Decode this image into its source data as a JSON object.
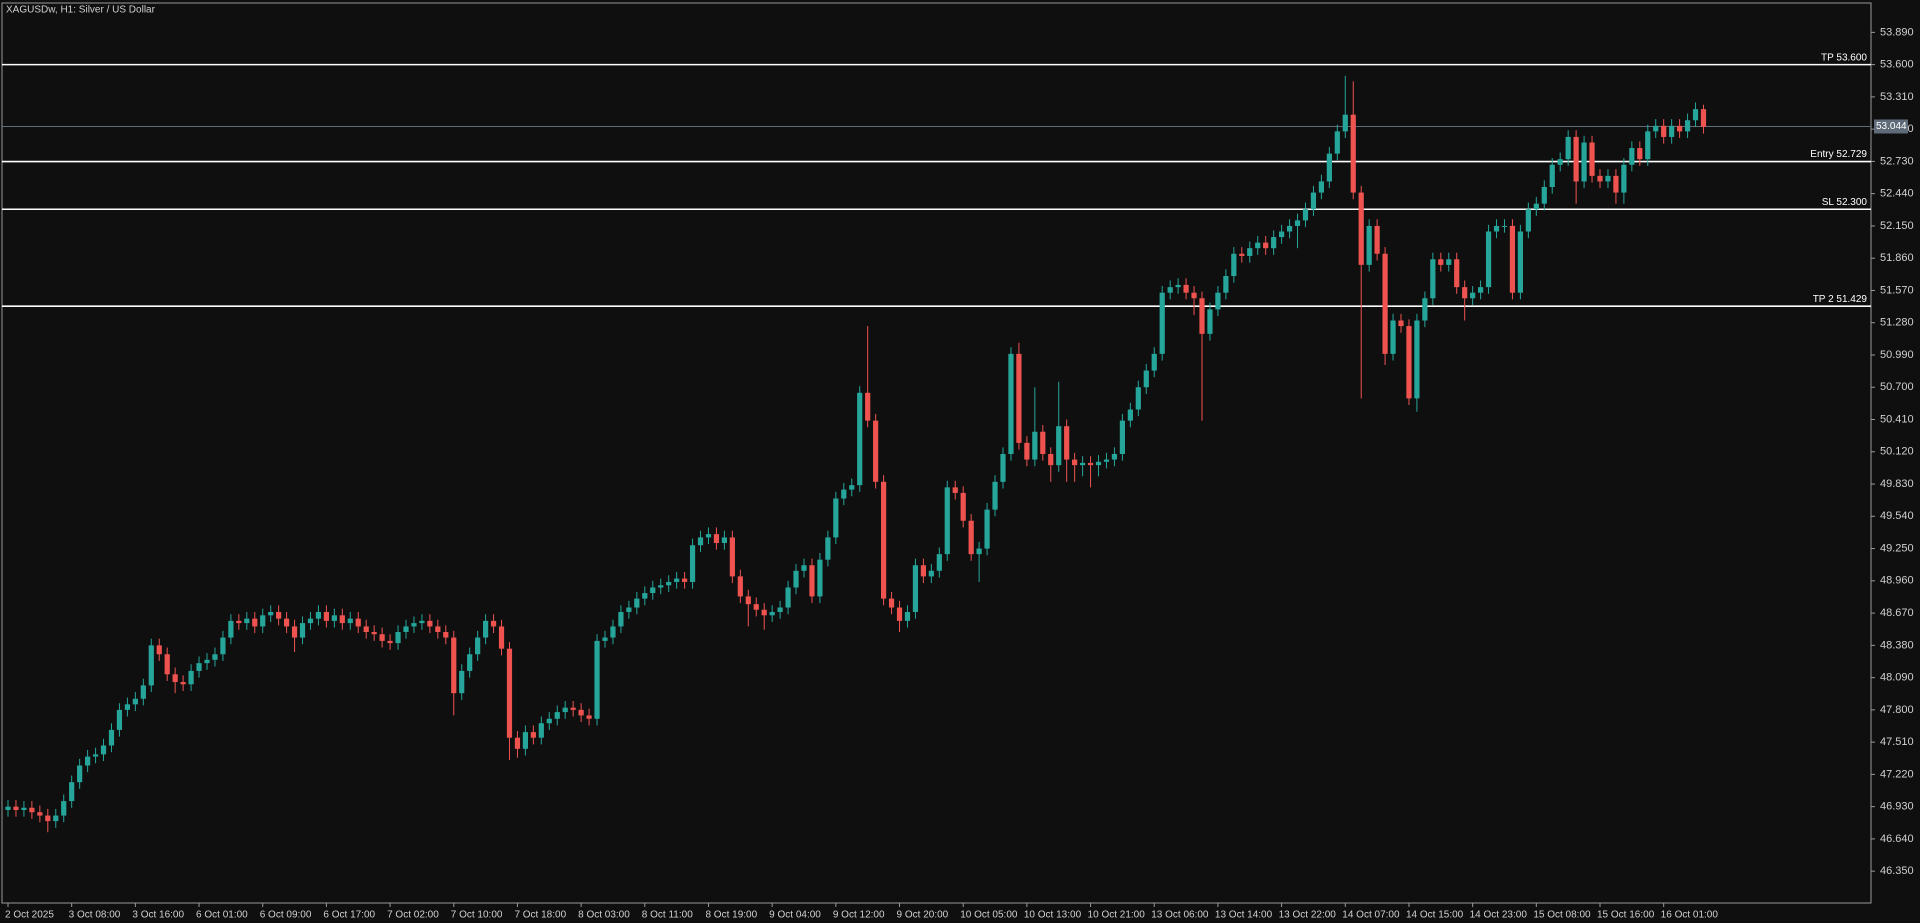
{
  "chart_data": {
    "type": "candlestick",
    "title": "XAGUSDw, H1:  Silver / US Dollar",
    "up_color": "#26a69a",
    "down_color": "#ef5350",
    "categories": [
      "2 Oct 2025",
      null,
      null,
      null,
      null,
      null,
      null,
      null,
      "3 Oct 08:00",
      null,
      null,
      null,
      null,
      null,
      null,
      null,
      "3 Oct 16:00",
      null,
      null,
      null,
      null,
      null,
      null,
      null,
      "6 Oct 01:00",
      null,
      null,
      null,
      null,
      null,
      null,
      null,
      "6 Oct 09:00",
      null,
      null,
      null,
      null,
      null,
      null,
      null,
      "6 Oct 17:00",
      null,
      null,
      null,
      null,
      null,
      null,
      null,
      "7 Oct 02:00",
      null,
      null,
      null,
      null,
      null,
      null,
      null,
      "7 Oct 10:00",
      null,
      null,
      null,
      null,
      null,
      null,
      null,
      "7 Oct 18:00",
      null,
      null,
      null,
      null,
      null,
      null,
      null,
      "8 Oct 03:00",
      null,
      null,
      null,
      null,
      null,
      null,
      null,
      "8 Oct 11:00",
      null,
      null,
      null,
      null,
      null,
      null,
      null,
      "8 Oct 19:00",
      null,
      null,
      null,
      null,
      null,
      null,
      null,
      "9 Oct 04:00",
      null,
      null,
      null,
      null,
      null,
      null,
      null,
      "9 Oct 12:00",
      null,
      null,
      null,
      null,
      null,
      null,
      null,
      "9 Oct 20:00",
      null,
      null,
      null,
      null,
      null,
      null,
      null,
      "10 Oct 05:00",
      null,
      null,
      null,
      null,
      null,
      null,
      null,
      "10 Oct 13:00",
      null,
      null,
      null,
      null,
      null,
      null,
      null,
      "10 Oct 21:00",
      null,
      null,
      null,
      null,
      null,
      null,
      null,
      "13 Oct 06:00",
      null,
      null,
      null,
      null,
      null,
      null,
      null,
      "13 Oct 14:00",
      null,
      null,
      null,
      null,
      null,
      null,
      null,
      "13 Oct 22:00",
      null,
      null,
      null,
      null,
      null,
      null,
      null,
      "14 Oct 07:00",
      null,
      null,
      null,
      null,
      null,
      null,
      null,
      "14 Oct 15:00",
      null,
      null,
      null,
      null,
      null,
      null,
      null,
      "14 Oct 23:00",
      null,
      null,
      null,
      null,
      null,
      null,
      null,
      "15 Oct 08:00",
      null,
      null,
      null,
      null,
      null,
      null,
      null,
      "15 Oct 16:00",
      null,
      null,
      null,
      null,
      null,
      null,
      null,
      "16 Oct 01:00",
      null,
      null,
      null,
      null,
      null
    ],
    "open": [
      46.9,
      46.93,
      46.9,
      46.92,
      46.88,
      46.85,
      46.8,
      46.85,
      46.98,
      47.15,
      47.3,
      47.38,
      47.4,
      47.48,
      47.62,
      47.8,
      47.85,
      47.9,
      48.02,
      48.38,
      48.3,
      48.12,
      48.05,
      48.03,
      48.15,
      48.22,
      48.25,
      48.3,
      48.45,
      48.6,
      48.58,
      48.62,
      48.55,
      48.65,
      48.68,
      48.62,
      48.55,
      48.45,
      48.58,
      48.62,
      48.68,
      48.6,
      48.65,
      48.58,
      48.62,
      48.55,
      48.5,
      48.48,
      48.42,
      48.4,
      48.5,
      48.55,
      48.58,
      48.6,
      48.55,
      48.5,
      48.45,
      47.95,
      48.15,
      48.3,
      48.45,
      48.6,
      48.55,
      48.35,
      47.55,
      47.45,
      47.6,
      47.55,
      47.68,
      47.72,
      47.78,
      47.82,
      47.8,
      47.75,
      47.72,
      48.42,
      48.45,
      48.55,
      48.68,
      48.72,
      48.8,
      48.85,
      48.9,
      48.92,
      48.95,
      48.98,
      48.95,
      49.28,
      49.35,
      49.38,
      49.3,
      49.35,
      49.0,
      48.82,
      48.75,
      48.7,
      48.65,
      48.68,
      48.72,
      48.9,
      49.05,
      49.1,
      48.82,
      49.15,
      49.35,
      49.7,
      49.78,
      49.82,
      50.65,
      50.4,
      49.85,
      48.8,
      48.72,
      48.6,
      48.68,
      49.1,
      49.0,
      49.05,
      49.2,
      49.8,
      49.75,
      49.5,
      49.2,
      49.25,
      49.6,
      49.85,
      50.1,
      51.0,
      50.2,
      50.05,
      50.3,
      50.1,
      50.0,
      50.35,
      50.05,
      50.0,
      50.02,
      50.0,
      50.03,
      50.05,
      50.1,
      50.4,
      50.5,
      50.7,
      50.85,
      51.0,
      51.55,
      51.6,
      51.62,
      51.55,
      51.5,
      51.18,
      51.4,
      51.55,
      51.7,
      51.9,
      51.88,
      51.95,
      52.0,
      51.95,
      52.05,
      52.1,
      52.15,
      52.2,
      52.3,
      52.45,
      52.55,
      52.8,
      53.0,
      53.15,
      52.45,
      51.8,
      52.15,
      51.9,
      51.0,
      51.3,
      51.25,
      50.6,
      51.3,
      51.5,
      51.85,
      51.8,
      51.85,
      51.6,
      51.5,
      51.55,
      51.6,
      52.1,
      52.15,
      52.15,
      51.55,
      52.1,
      52.3,
      52.35,
      52.5,
      52.7,
      52.75,
      52.95,
      52.55,
      52.9,
      52.6,
      52.55,
      52.6,
      52.45,
      52.7,
      52.85,
      52.75,
      53.0,
      53.05,
      52.95,
      53.05,
      53.0,
      53.1,
      53.2
    ],
    "high": [
      46.99,
      46.99,
      46.98,
      46.98,
      46.94,
      46.91,
      46.91,
      47.04,
      47.21,
      47.36,
      47.44,
      47.46,
      47.54,
      47.68,
      47.86,
      47.91,
      47.96,
      48.08,
      48.44,
      48.44,
      48.36,
      48.18,
      48.11,
      48.21,
      48.28,
      48.31,
      48.36,
      48.51,
      48.66,
      48.66,
      48.68,
      48.68,
      48.71,
      48.74,
      48.74,
      48.68,
      48.61,
      48.64,
      48.68,
      48.74,
      48.74,
      48.71,
      48.71,
      48.68,
      48.68,
      48.61,
      48.56,
      48.54,
      48.48,
      48.56,
      48.61,
      48.64,
      48.66,
      48.66,
      48.61,
      48.56,
      48.51,
      48.21,
      48.36,
      48.51,
      48.66,
      48.66,
      48.61,
      48.41,
      47.61,
      47.66,
      47.66,
      47.74,
      47.78,
      47.84,
      47.88,
      47.88,
      47.86,
      47.81,
      48.48,
      48.51,
      48.61,
      48.74,
      48.78,
      48.86,
      48.91,
      48.96,
      48.98,
      49.01,
      49.04,
      49.04,
      49.34,
      49.41,
      49.44,
      49.44,
      49.41,
      49.41,
      49.06,
      48.88,
      48.81,
      48.76,
      48.74,
      48.78,
      48.96,
      49.11,
      49.16,
      49.16,
      49.21,
      49.41,
      49.76,
      49.84,
      49.88,
      50.71,
      51.25,
      50.46,
      49.91,
      48.86,
      48.78,
      48.74,
      49.16,
      49.16,
      49.11,
      49.26,
      49.86,
      49.86,
      49.81,
      49.56,
      49.31,
      49.66,
      49.91,
      50.16,
      51.06,
      51.1,
      50.26,
      50.7,
      50.36,
      50.16,
      50.75,
      50.41,
      50.11,
      50.08,
      50.08,
      50.09,
      50.11,
      50.16,
      50.46,
      50.56,
      50.76,
      50.91,
      51.06,
      51.61,
      51.66,
      51.68,
      51.68,
      51.61,
      51.56,
      51.46,
      51.61,
      51.76,
      51.96,
      51.96,
      52.01,
      52.06,
      52.06,
      52.11,
      52.16,
      52.21,
      52.26,
      52.36,
      52.51,
      52.61,
      52.86,
      53.06,
      53.5,
      53.45,
      52.51,
      52.21,
      52.21,
      51.96,
      51.36,
      51.36,
      51.31,
      51.36,
      51.56,
      51.91,
      51.91,
      51.91,
      51.91,
      51.66,
      51.61,
      51.66,
      52.16,
      52.21,
      52.21,
      52.21,
      52.16,
      52.36,
      52.41,
      52.56,
      52.76,
      52.81,
      53.01,
      53.01,
      52.96,
      52.96,
      52.66,
      52.66,
      52.66,
      52.76,
      52.91,
      52.91,
      53.06,
      53.11,
      53.11,
      53.11,
      53.11,
      53.16,
      53.26,
      53.24
    ],
    "low": [
      46.84,
      46.84,
      46.84,
      46.82,
      46.79,
      46.7,
      46.74,
      46.79,
      46.92,
      47.09,
      47.24,
      47.32,
      47.34,
      47.42,
      47.56,
      47.74,
      47.79,
      47.84,
      47.96,
      48.24,
      48.06,
      47.95,
      47.97,
      47.97,
      48.09,
      48.16,
      48.19,
      48.24,
      48.39,
      48.52,
      48.52,
      48.49,
      48.49,
      48.59,
      48.56,
      48.49,
      48.32,
      48.39,
      48.52,
      48.56,
      48.54,
      48.54,
      48.52,
      48.52,
      48.49,
      48.44,
      48.42,
      48.36,
      48.34,
      48.34,
      48.44,
      48.49,
      48.52,
      48.49,
      48.44,
      48.39,
      47.75,
      47.89,
      48.09,
      48.24,
      48.39,
      48.49,
      48.29,
      47.35,
      47.37,
      47.39,
      47.49,
      47.49,
      47.62,
      47.66,
      47.72,
      47.74,
      47.69,
      47.66,
      47.66,
      48.36,
      48.39,
      48.49,
      48.62,
      48.66,
      48.74,
      48.79,
      48.84,
      48.86,
      48.89,
      48.89,
      48.89,
      49.22,
      49.29,
      49.24,
      49.24,
      48.94,
      48.76,
      48.55,
      48.64,
      48.52,
      48.59,
      48.62,
      48.66,
      48.84,
      48.99,
      48.76,
      48.76,
      49.09,
      49.29,
      49.64,
      49.72,
      49.76,
      50.34,
      49.79,
      48.74,
      48.66,
      48.5,
      48.54,
      48.62,
      48.94,
      48.94,
      48.99,
      49.14,
      49.69,
      49.44,
      49.14,
      48.95,
      49.19,
      49.54,
      49.79,
      50.04,
      50.14,
      49.99,
      49.99,
      50.04,
      49.85,
      49.94,
      49.85,
      49.85,
      49.9,
      49.8,
      49.9,
      49.97,
      49.99,
      50.04,
      50.34,
      50.44,
      50.64,
      50.79,
      50.94,
      51.49,
      51.54,
      51.49,
      51.35,
      50.4,
      51.12,
      51.34,
      51.49,
      51.64,
      51.82,
      51.82,
      51.89,
      51.89,
      51.89,
      51.99,
      52.04,
      51.95,
      52.14,
      52.24,
      52.39,
      52.49,
      52.74,
      52.94,
      52.39,
      50.6,
      51.74,
      51.84,
      50.9,
      50.94,
      51.19,
      50.54,
      50.48,
      51.24,
      51.44,
      51.74,
      51.74,
      51.54,
      51.3,
      51.44,
      51.49,
      51.54,
      52.04,
      52.09,
      51.49,
      51.49,
      52.04,
      52.24,
      52.29,
      52.44,
      52.64,
      52.69,
      52.35,
      52.49,
      52.54,
      52.49,
      52.49,
      52.35,
      52.35,
      52.64,
      52.69,
      52.69,
      52.94,
      52.89,
      52.89,
      52.94,
      52.94,
      53.04,
      52.98
    ],
    "close": [
      46.93,
      46.9,
      46.92,
      46.88,
      46.85,
      46.8,
      46.85,
      46.98,
      47.15,
      47.3,
      47.38,
      47.4,
      47.48,
      47.62,
      47.8,
      47.85,
      47.9,
      48.02,
      48.38,
      48.3,
      48.12,
      48.05,
      48.03,
      48.15,
      48.22,
      48.25,
      48.3,
      48.45,
      48.6,
      48.58,
      48.62,
      48.55,
      48.65,
      48.68,
      48.62,
      48.55,
      48.45,
      48.58,
      48.62,
      48.68,
      48.6,
      48.65,
      48.58,
      48.62,
      48.55,
      48.5,
      48.48,
      48.42,
      48.4,
      48.5,
      48.55,
      48.58,
      48.6,
      48.55,
      48.5,
      48.45,
      47.95,
      48.15,
      48.3,
      48.45,
      48.6,
      48.55,
      48.35,
      47.55,
      47.45,
      47.6,
      47.55,
      47.68,
      47.72,
      47.78,
      47.82,
      47.8,
      47.75,
      47.72,
      48.42,
      48.45,
      48.55,
      48.68,
      48.72,
      48.8,
      48.85,
      48.9,
      48.92,
      48.95,
      48.98,
      48.95,
      49.28,
      49.35,
      49.38,
      49.3,
      49.35,
      49.0,
      48.82,
      48.75,
      48.7,
      48.65,
      48.68,
      48.72,
      48.9,
      49.05,
      49.1,
      48.82,
      49.15,
      49.35,
      49.7,
      49.78,
      49.82,
      50.65,
      50.4,
      49.85,
      48.8,
      48.72,
      48.6,
      48.68,
      49.1,
      49.0,
      49.05,
      49.2,
      49.8,
      49.75,
      49.5,
      49.2,
      49.25,
      49.6,
      49.85,
      50.1,
      51.0,
      50.2,
      50.05,
      50.3,
      50.1,
      50.0,
      50.35,
      50.05,
      50.0,
      50.02,
      50.0,
      50.03,
      50.05,
      50.1,
      50.4,
      50.5,
      50.7,
      50.85,
      51.0,
      51.55,
      51.6,
      51.62,
      51.55,
      51.5,
      51.18,
      51.4,
      51.55,
      51.7,
      51.9,
      51.88,
      51.95,
      52.0,
      51.95,
      52.05,
      52.1,
      52.15,
      52.2,
      52.3,
      52.45,
      52.55,
      52.8,
      53.0,
      53.15,
      52.45,
      51.8,
      52.15,
      51.9,
      51.0,
      51.3,
      51.25,
      50.6,
      51.3,
      51.5,
      51.85,
      51.8,
      51.85,
      51.6,
      51.5,
      51.55,
      51.6,
      52.1,
      52.15,
      52.15,
      51.55,
      52.1,
      52.3,
      52.35,
      52.5,
      52.7,
      52.75,
      52.95,
      52.55,
      52.9,
      52.6,
      52.55,
      52.6,
      52.45,
      52.7,
      52.85,
      52.75,
      53.0,
      53.05,
      52.95,
      53.05,
      53.0,
      53.1,
      53.2,
      53.04
    ],
    "ylim": [
      46.064,
      54.154
    ],
    "yticks": [
      {
        "value": 53.89,
        "label": "53.890"
      },
      {
        "value": 53.6,
        "label": "53.600"
      },
      {
        "value": 53.31,
        "label": "53.310"
      },
      {
        "value": 53.02,
        "label": "53.020"
      },
      {
        "value": 52.73,
        "label": "52.730"
      },
      {
        "value": 52.44,
        "label": "52.440"
      },
      {
        "value": 52.15,
        "label": "52.150"
      },
      {
        "value": 51.86,
        "label": "51.860"
      },
      {
        "value": 51.57,
        "label": "51.570"
      },
      {
        "value": 51.28,
        "label": "51.280"
      },
      {
        "value": 50.99,
        "label": "50.990"
      },
      {
        "value": 50.7,
        "label": "50.700"
      },
      {
        "value": 50.41,
        "label": "50.410"
      },
      {
        "value": 50.12,
        "label": "50.120"
      },
      {
        "value": 49.83,
        "label": "49.830"
      },
      {
        "value": 49.54,
        "label": "49.540"
      },
      {
        "value": 49.25,
        "label": "49.250"
      },
      {
        "value": 48.96,
        "label": "48.960"
      },
      {
        "value": 48.67,
        "label": "48.670"
      },
      {
        "value": 48.38,
        "label": "48.380"
      },
      {
        "value": 48.09,
        "label": "48.090"
      },
      {
        "value": 47.8,
        "label": "47.800"
      },
      {
        "value": 47.51,
        "label": "47.510"
      },
      {
        "value": 47.22,
        "label": "47.220"
      },
      {
        "value": 46.93,
        "label": "46.930"
      },
      {
        "value": 46.64,
        "label": "46.640"
      },
      {
        "value": 46.35,
        "label": "46.350"
      }
    ],
    "levels": [
      {
        "value": 53.6,
        "label": "TP 53.600"
      },
      {
        "value": 52.729,
        "label": "Entry 52.729"
      },
      {
        "value": 52.3,
        "label": "SL 52.300"
      },
      {
        "value": 51.429,
        "label": "TP 2 51.429"
      }
    ],
    "current_price": 53.044,
    "grid": false
  }
}
